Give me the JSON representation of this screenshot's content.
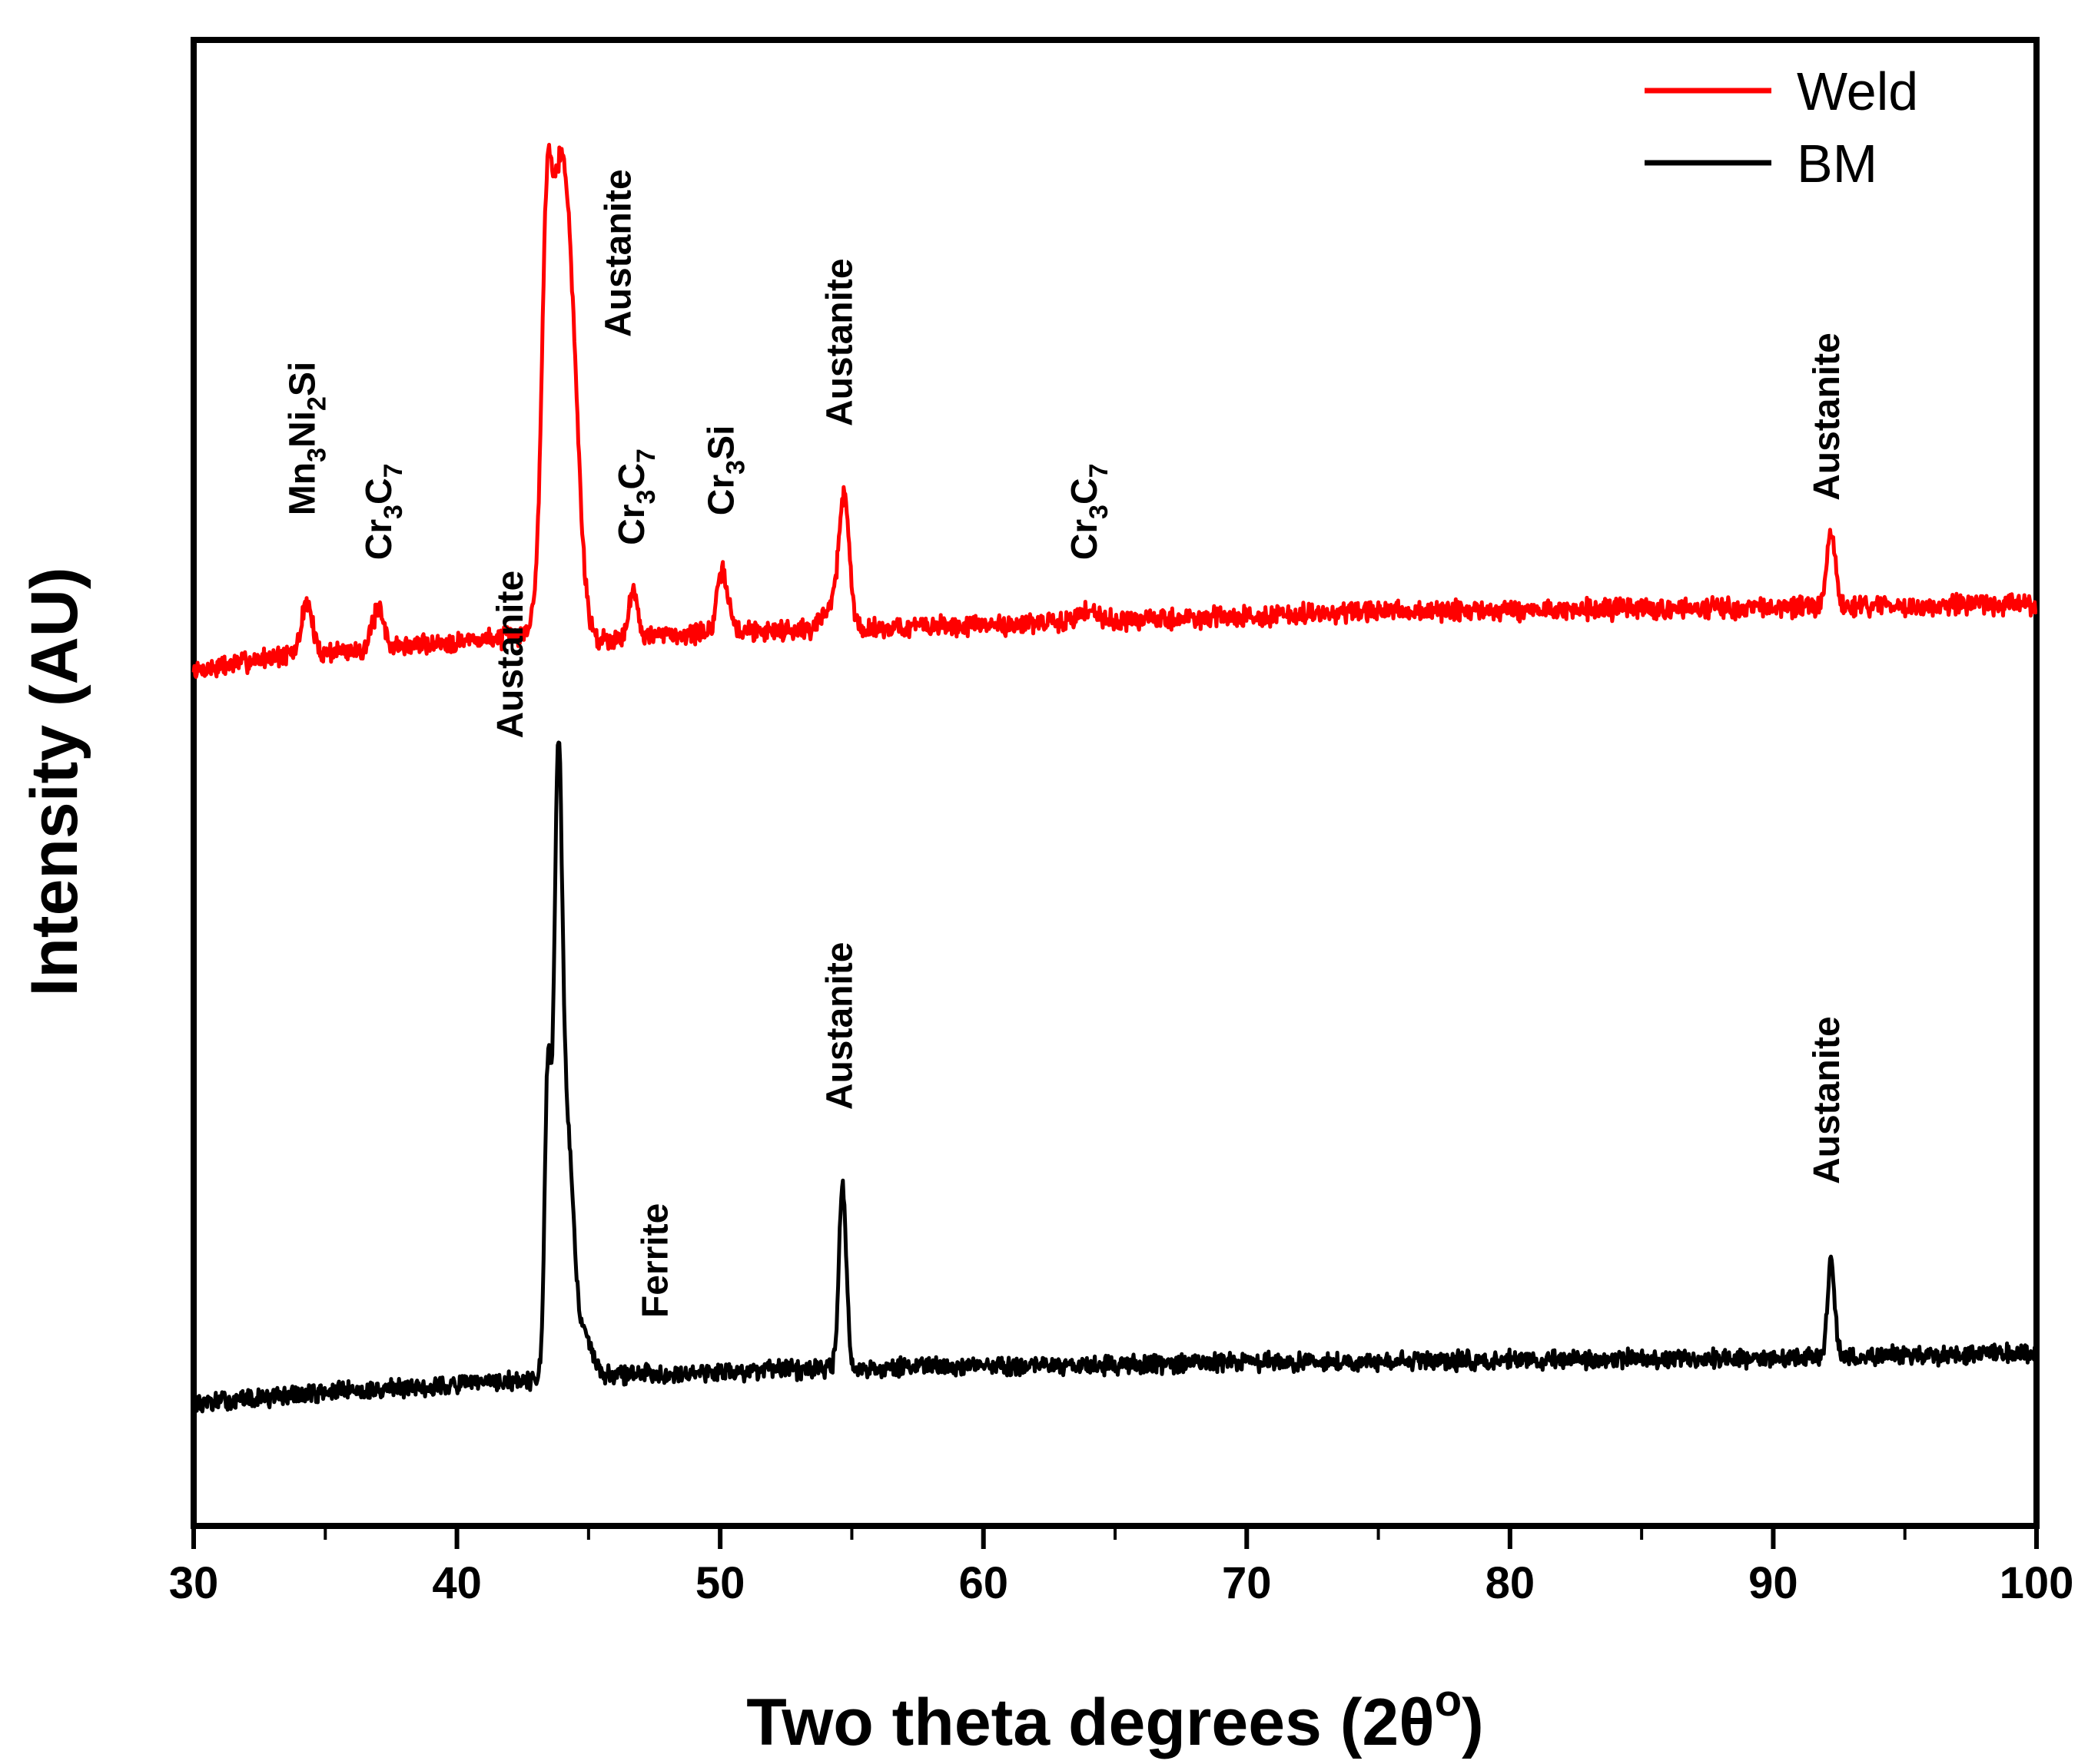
{
  "chart_data": {
    "type": "line",
    "title": "",
    "xlabel": "Two theta degrees (2θ",
    "xlabel_sup": "o",
    "xlabel_end": ")",
    "ylabel": "Intensity (AU)",
    "xlim": [
      30,
      100
    ],
    "ylim": [
      0,
      100
    ],
    "x_ticks": [
      "30",
      "40",
      "50",
      "60",
      "70",
      "80",
      "90",
      "100"
    ],
    "grid": false,
    "legend_position": "top-right",
    "series": [
      {
        "name": "Weld",
        "color": "#ff0000",
        "baseline": [
          [
            30,
            57.5
          ],
          [
            33,
            58.5
          ],
          [
            40,
            59.5
          ],
          [
            43,
            60.0
          ],
          [
            45,
            59.6
          ],
          [
            50,
            60.2
          ],
          [
            60,
            60.6
          ],
          [
            75,
            61.5
          ],
          [
            90,
            61.8
          ],
          [
            100,
            62.0
          ]
        ],
        "peaks": [
          {
            "x": 34.3,
            "height": 3.5,
            "width": 0.2
          },
          {
            "x": 37.0,
            "height": 2.5,
            "width": 0.22
          },
          {
            "x": 43.4,
            "height": 16.0,
            "width": 0.18
          },
          {
            "x": 43.9,
            "height": 30.0,
            "width": 0.42
          },
          {
            "x": 44.4,
            "height": 8.0,
            "width": 0.3
          },
          {
            "x": 46.7,
            "height": 3.0,
            "width": 0.18
          },
          {
            "x": 50.1,
            "height": 4.0,
            "width": 0.2
          },
          {
            "x": 54.1,
            "height": 1.5,
            "width": 0.25
          },
          {
            "x": 54.7,
            "height": 9.0,
            "width": 0.2
          },
          {
            "x": 64.0,
            "height": 0.8,
            "width": 0.4
          },
          {
            "x": 92.2,
            "height": 5.0,
            "width": 0.16
          }
        ],
        "noise": 0.55,
        "seed": 7
      },
      {
        "name": "BM",
        "color": "#000000",
        "baseline": [
          [
            30,
            8.2
          ],
          [
            35,
            9.0
          ],
          [
            40,
            9.5
          ],
          [
            43,
            9.8
          ],
          [
            46,
            10.2
          ],
          [
            55,
            10.6
          ],
          [
            70,
            11.0
          ],
          [
            90,
            11.3
          ],
          [
            100,
            11.6
          ]
        ],
        "peaks": [
          {
            "x": 43.45,
            "height": 20.0,
            "width": 0.12
          },
          {
            "x": 43.85,
            "height": 41.0,
            "width": 0.16
          },
          {
            "x": 44.25,
            "height": 14.0,
            "width": 0.2
          },
          {
            "x": 44.8,
            "height": 3.2,
            "width": 0.3
          },
          {
            "x": 54.65,
            "height": 12.5,
            "width": 0.14
          },
          {
            "x": 92.2,
            "height": 6.5,
            "width": 0.13
          }
        ],
        "noise": 0.5,
        "seed": 13
      }
    ],
    "annotations": [
      {
        "series": "Weld",
        "x": 34.6,
        "y": 68,
        "parts": [
          [
            "Mn",
            0
          ],
          [
            "3",
            1
          ],
          [
            "Ni",
            0
          ],
          [
            "2",
            1
          ],
          [
            "Si",
            0
          ]
        ]
      },
      {
        "series": "Weld",
        "x": 37.5,
        "y": 65,
        "parts": [
          [
            "Cr",
            0
          ],
          [
            "3",
            1
          ],
          [
            "C",
            0
          ],
          [
            "7",
            1
          ]
        ]
      },
      {
        "series": "Weld",
        "x": 46.6,
        "y": 80,
        "parts": [
          [
            "Austanite",
            0
          ]
        ]
      },
      {
        "series": "Weld",
        "x": 47.1,
        "y": 66,
        "parts": [
          [
            "Cr",
            0
          ],
          [
            "3",
            1
          ],
          [
            "C",
            0
          ],
          [
            "7",
            1
          ]
        ]
      },
      {
        "series": "Weld",
        "x": 50.5,
        "y": 68,
        "parts": [
          [
            "Cr",
            0
          ],
          [
            "3",
            1
          ],
          [
            "Si",
            0
          ]
        ]
      },
      {
        "series": "Weld",
        "x": 55.0,
        "y": 74,
        "parts": [
          [
            "Austanite",
            0
          ]
        ]
      },
      {
        "series": "Weld",
        "x": 64.3,
        "y": 65,
        "parts": [
          [
            "Cr",
            0
          ],
          [
            "3",
            1
          ],
          [
            "C",
            0
          ],
          [
            "7",
            1
          ]
        ]
      },
      {
        "series": "Weld",
        "x": 92.5,
        "y": 69,
        "parts": [
          [
            "Austanite",
            0
          ]
        ]
      },
      {
        "series": "BM",
        "x": 42.5,
        "y": 53,
        "parts": [
          [
            "Austanite",
            0
          ]
        ]
      },
      {
        "series": "BM",
        "x": 48.0,
        "y": 14,
        "parts": [
          [
            "Ferrite",
            0
          ]
        ]
      },
      {
        "series": "BM",
        "x": 55.0,
        "y": 28,
        "parts": [
          [
            "Austanite",
            0
          ]
        ]
      },
      {
        "series": "BM",
        "x": 92.5,
        "y": 23,
        "parts": [
          [
            "Austanite",
            0
          ]
        ]
      }
    ]
  }
}
